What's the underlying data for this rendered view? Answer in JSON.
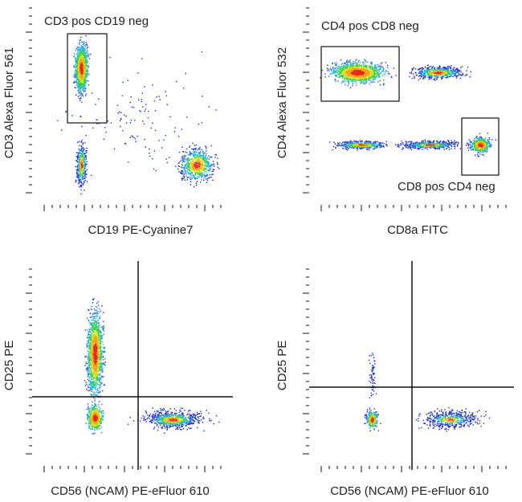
{
  "panels": [
    {
      "y_label": "CD3 Alexa Fluor 561",
      "x_label": "CD19 PE-Cyanine7",
      "gates": [
        "CD3 pos CD19 neg"
      ]
    },
    {
      "y_label": "CD4 Alexa Fluor 532",
      "x_label": "CD8a FITC",
      "gates": [
        "CD4 pos CD8 neg",
        "CD8 pos CD4 neg"
      ]
    },
    {
      "y_label": "CD25 PE",
      "x_label": "CD56 (NCAM) PE-eFluor 610",
      "gates": []
    },
    {
      "y_label": "CD25 PE",
      "x_label": "CD56 (NCAM) PE-eFluor 610",
      "gates": []
    }
  ]
}
